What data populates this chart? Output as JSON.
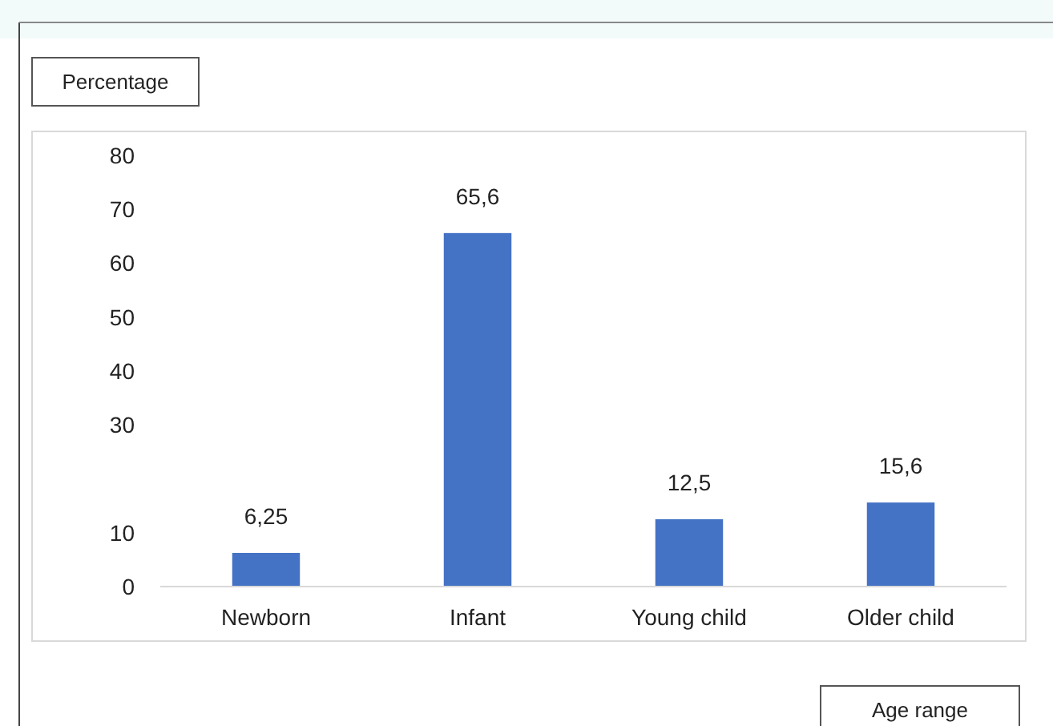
{
  "chart_data": {
    "type": "bar",
    "xlabel": "Age range",
    "ylabel": "Percentage",
    "categories": [
      "Newborn",
      "Infant",
      "Young child",
      "Older child"
    ],
    "values": [
      6.25,
      65.6,
      12.5,
      15.6
    ],
    "value_labels": [
      "6,25",
      "65,6",
      "12,5",
      "15,6"
    ],
    "color": "#4472c4",
    "ylim": [
      0,
      80
    ],
    "yticks": [
      0,
      10,
      30,
      40,
      50,
      60,
      70,
      80
    ],
    "grid": false
  }
}
